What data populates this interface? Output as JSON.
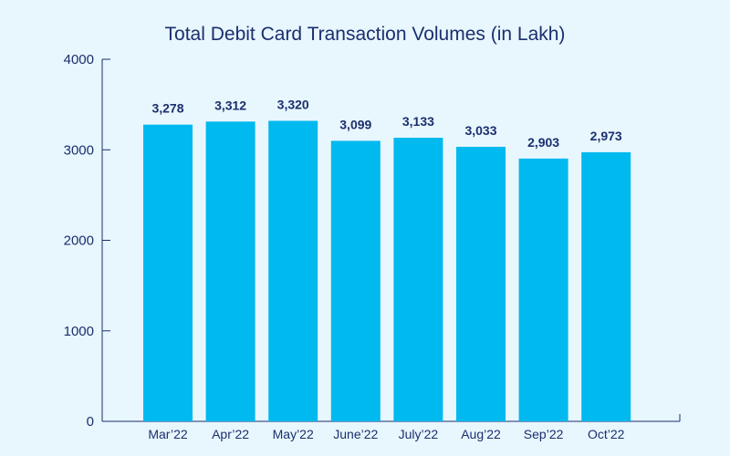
{
  "chart_data": {
    "type": "bar",
    "title": "Total Debit Card Transaction Volumes (in Lakh)",
    "xlabel": "",
    "ylabel": "",
    "categories": [
      "Mar’22",
      "Apr’22",
      "May’22",
      "June’22",
      "July’22",
      "Aug’22",
      "Sep’22",
      "Oct’22"
    ],
    "values": [
      3278,
      3312,
      3320,
      3099,
      3133,
      3033,
      2903,
      2973
    ],
    "data_labels": [
      "3,278",
      "3,312",
      "3,320",
      "3,099",
      "3,133",
      "3,033",
      "2,903",
      "2,973"
    ],
    "yticks": [
      0,
      1000,
      2000,
      3000,
      4000
    ],
    "ylim": [
      0,
      4000
    ],
    "grid": false,
    "legend": "none",
    "bar_color": "#00b9ee",
    "text_color": "#1a2f6e",
    "background_color": "#e8f6fd"
  }
}
